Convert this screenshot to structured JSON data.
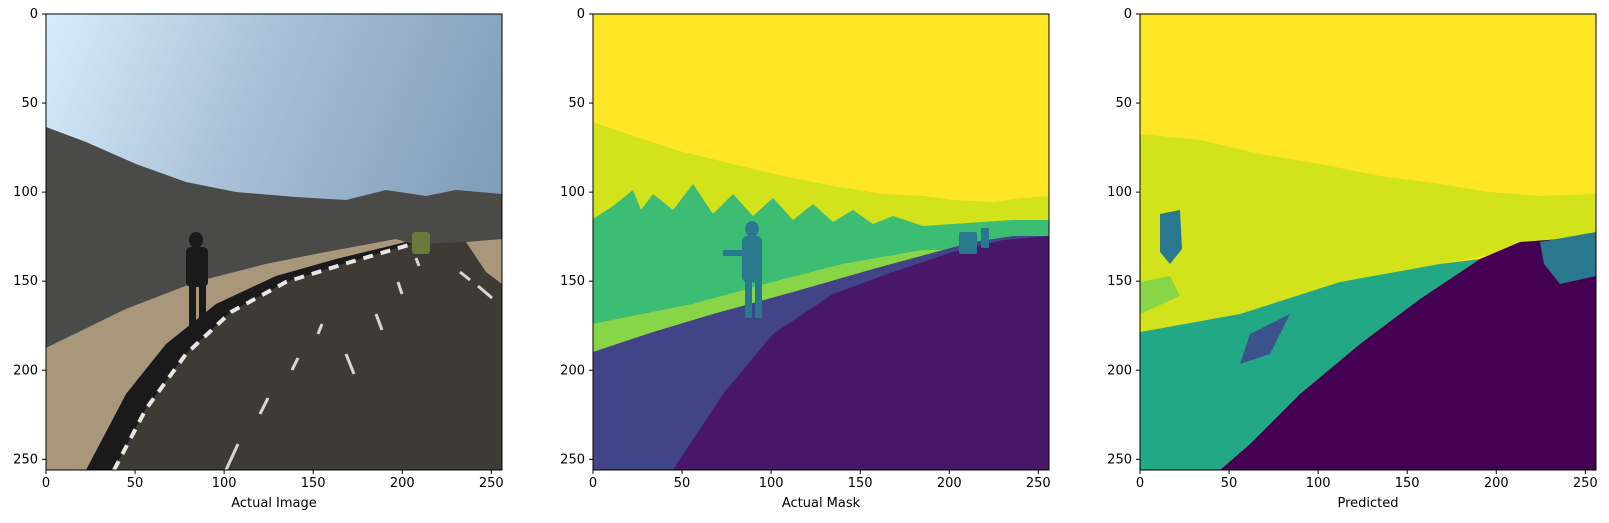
{
  "chart_data": [
    {
      "type": "image",
      "xlabel": "Actual Image",
      "xlim": [
        0,
        256
      ],
      "ylim": [
        256,
        0
      ],
      "xticks": [
        0,
        50,
        100,
        150,
        200,
        250
      ],
      "yticks": [
        0,
        50,
        100,
        150,
        200,
        250
      ],
      "content": "photo",
      "colors": {
        "sky_top": "#d7eefb",
        "sky_mid": "#a9c1d8",
        "sky_right": "#7f9bb6",
        "road": "#3e3b34",
        "sidewalk": "#a8977a",
        "wall": "#4a4a48",
        "curb_dark": "#1a1a1a",
        "curb_light": "#e6e6e6",
        "lane_mark": "#d8d8d0"
      }
    },
    {
      "type": "image",
      "xlabel": "Actual Mask",
      "xlim": [
        0,
        256
      ],
      "ylim": [
        256,
        0
      ],
      "xticks": [
        0,
        50,
        100,
        150,
        200,
        250
      ],
      "yticks": [
        0,
        50,
        100,
        150,
        200,
        250
      ],
      "content": "segmentation-mask",
      "colors": {
        "sky": "#fde725",
        "vegetation": "#d2e21b",
        "wall": "#3dbc74",
        "sidewalk": "#89d548",
        "road_left": "#414487",
        "road": "#481769",
        "person": "#2a788e",
        "vehicle": "#2a788e"
      }
    },
    {
      "type": "image",
      "xlabel": "Predicted",
      "xlim": [
        0,
        256
      ],
      "ylim": [
        256,
        0
      ],
      "xticks": [
        0,
        50,
        100,
        150,
        200,
        250
      ],
      "yticks": [
        0,
        50,
        100,
        150,
        200,
        250
      ],
      "content": "segmentation-mask",
      "colors": {
        "sky": "#fde725",
        "vegetation": "#d2e21b",
        "sidewalk": "#22a884",
        "wall": "#2a788e",
        "road": "#440154",
        "pole": "#3b528b",
        "light": "#89d548"
      }
    }
  ]
}
